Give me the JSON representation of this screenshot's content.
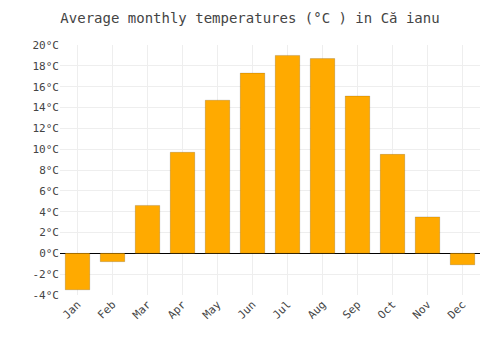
{
  "chart_data": {
    "type": "bar",
    "title": "Average monthly temperatures (°C ) in Că ianu",
    "categories": [
      "Jan",
      "Feb",
      "Mar",
      "Apr",
      "May",
      "Jun",
      "Jul",
      "Aug",
      "Sep",
      "Oct",
      "Nov",
      "Dec"
    ],
    "values": [
      -3.5,
      -0.8,
      4.6,
      9.7,
      14.7,
      17.3,
      19.0,
      18.7,
      15.1,
      9.5,
      3.5,
      -1.1
    ],
    "color": "#FFAA00",
    "ylim": [
      -4,
      20
    ],
    "yticks": [
      {
        "value": -4,
        "label": "-4°C"
      },
      {
        "value": -2,
        "label": "-2°C"
      },
      {
        "value": 0,
        "label": "0°C"
      },
      {
        "value": 2,
        "label": "2°C"
      },
      {
        "value": 4,
        "label": "4°C"
      },
      {
        "value": 6,
        "label": "6°C"
      },
      {
        "value": 8,
        "label": "8°C"
      },
      {
        "value": 10,
        "label": "10°C"
      },
      {
        "value": 12,
        "label": "12°C"
      },
      {
        "value": 14,
        "label": "14°C"
      },
      {
        "value": 16,
        "label": "16°C"
      },
      {
        "value": 18,
        "label": "18°C"
      },
      {
        "value": 20,
        "label": "20°C"
      }
    ],
    "grid": true
  }
}
